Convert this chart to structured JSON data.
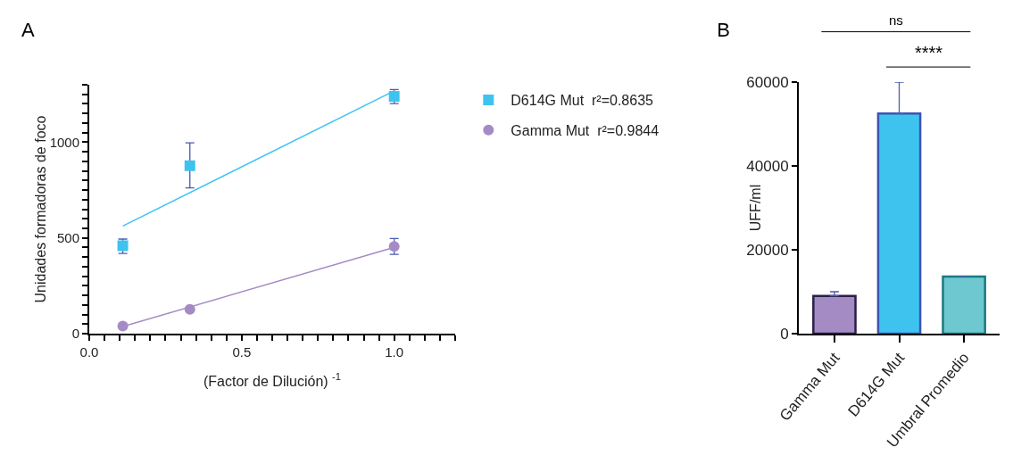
{
  "chart_data": [
    {
      "type": "scatter",
      "title": "A",
      "xlabel": "(Factor de Dilución) $^{-1}$",
      "ylabel": "Unidades formadoras de foco",
      "series": [
        {
          "name": "D614G Mut  r²=0.8635",
          "color": "#3ec3ef",
          "marker": "square",
          "x": [
            0.11,
            0.33,
            1.0
          ],
          "values": [
            459,
            877,
            1239
          ],
          "errors": [
            [
              419,
              494
            ],
            [
              761,
              997
            ],
            [
              1202,
              1275
            ]
          ]
        },
        {
          "name": "Gamma Mut  r²=0.9844",
          "color": "#a58bc4",
          "marker": "circle",
          "x": [
            0.11,
            0.33,
            1.0
          ],
          "values": [
            40,
            127,
            455
          ],
          "errors": [
            null,
            null,
            [
              414,
              497
            ]
          ]
        },
        {
          "type": "line",
          "color": "#3ec3ef",
          "x": [
            0.11,
            1.0
          ],
          "values": [
            562,
            1268
          ]
        },
        {
          "type": "line",
          "color": "#a58bc4",
          "x": [
            0.11,
            1.0
          ],
          "values": [
            37,
            451
          ]
        }
      ],
      "xlim": [
        0,
        1.2
      ],
      "xticks": [
        {
          "value": 0,
          "label": "0.0"
        },
        {
          "value": 0.05,
          "label": null
        },
        {
          "value": 0.1,
          "label": null
        },
        {
          "value": 0.15,
          "label": null
        },
        {
          "value": 0.2,
          "label": null
        },
        {
          "value": 0.25,
          "label": null
        },
        {
          "value": 0.3,
          "label": null
        },
        {
          "value": 0.35,
          "label": null
        },
        {
          "value": 0.4,
          "label": null
        },
        {
          "value": 0.45,
          "label": null
        },
        0.5,
        {
          "value": 0.55,
          "label": null
        },
        {
          "value": 0.6,
          "label": null
        },
        {
          "value": 0.65,
          "label": null
        },
        {
          "value": 0.7,
          "label": null
        },
        {
          "value": 0.75,
          "label": null
        },
        {
          "value": 0.8,
          "label": null
        },
        {
          "value": 0.85,
          "label": null
        },
        {
          "value": 0.9,
          "label": null
        },
        {
          "value": 0.95,
          "label": null
        },
        {
          "value": 1.0,
          "label": "1.0"
        },
        {
          "value": 1.05,
          "label": null
        },
        {
          "value": 1.1,
          "label": null
        },
        {
          "value": 1.15,
          "label": null
        },
        {
          "value": 1.2,
          "label": null
        }
      ],
      "ylim": [
        0,
        1300
      ],
      "yticks": [
        0,
        {
          "value": 50,
          "label": null
        },
        {
          "value": 100,
          "label": null
        },
        {
          "value": 150,
          "label": null
        },
        {
          "value": 200,
          "label": null
        },
        {
          "value": 250,
          "label": null
        },
        {
          "value": 300,
          "label": null
        },
        {
          "value": 350,
          "label": null
        },
        {
          "value": 400,
          "label": null
        },
        {
          "value": 450,
          "label": null
        },
        500,
        {
          "value": 550,
          "label": null
        },
        {
          "value": 600,
          "label": null
        },
        {
          "value": 650,
          "label": null
        },
        {
          "value": 700,
          "label": null
        },
        {
          "value": 750,
          "label": null
        },
        {
          "value": 800,
          "label": null
        },
        {
          "value": 850,
          "label": null
        },
        {
          "value": 900,
          "label": null
        },
        {
          "value": 950,
          "label": null
        },
        1000,
        {
          "value": 1050,
          "label": null
        },
        {
          "value": 1100,
          "label": null
        },
        {
          "value": 1150,
          "label": null
        },
        {
          "value": 1200,
          "label": null
        },
        {
          "value": 1250,
          "label": null
        },
        {
          "value": 1300,
          "label": null
        }
      ],
      "grid": false,
      "legend": "right"
    },
    {
      "type": "bar",
      "title": "B",
      "ylabel": "UFF/ml",
      "categories": [
        "Gamma Mut",
        "D614G Mut",
        "Umbral Promedio"
      ],
      "values": [
        9000,
        52500,
        13600
      ],
      "colors": [
        "#a58bc4",
        "#3ec3ef",
        "#6ec8d0"
      ],
      "errors": [
        [
          9000,
          10000
        ],
        [
          52500,
          60000
        ],
        null
      ],
      "ylim": [
        0,
        60000
      ],
      "yticks": [
        0,
        20000,
        40000,
        60000
      ],
      "annotations": [
        "ns",
        "****"
      ],
      "grid": false,
      "legend": false
    }
  ]
}
